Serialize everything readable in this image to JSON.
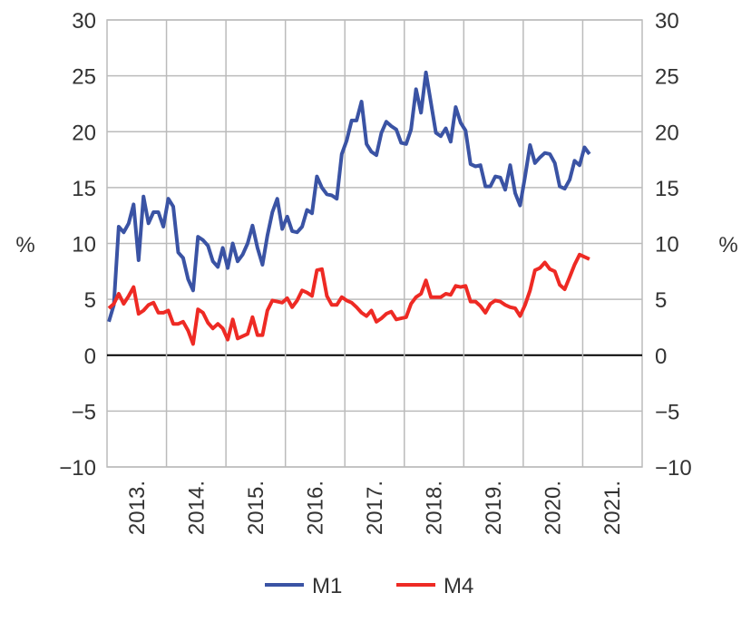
{
  "chart_data": {
    "type": "line",
    "title": "",
    "ylabel_left": "%",
    "ylabel_right": "%",
    "ylim": [
      -10,
      30
    ],
    "yticks": [
      30,
      25,
      20,
      15,
      10,
      5,
      0,
      -5,
      -10
    ],
    "ytick_labels": [
      "30",
      "25",
      "20",
      "15",
      "10",
      "5",
      "0",
      "−5",
      "−10"
    ],
    "xtick_labels": [
      "2013.",
      "2014.",
      "2015.",
      "2016.",
      "2017.",
      "2018.",
      "2019.",
      "2020.",
      "2021."
    ],
    "x_axis": "monthly, 2013-01 to 2021-02",
    "grid": true,
    "legend_position": "bottom",
    "series": [
      {
        "name": "M1",
        "color": "#3a53a4",
        "values": [
          3,
          4.5,
          11.5,
          11,
          11.8,
          13.5,
          8.5,
          14.2,
          11.8,
          12.8,
          12.8,
          11.5,
          14,
          13.3,
          9.2,
          8.7,
          6.8,
          5.8,
          10.6,
          10.3,
          9.8,
          8.4,
          7.9,
          9.6,
          7.8,
          10,
          8.4,
          9,
          10,
          11.6,
          9.6,
          8.1,
          10.7,
          12.8,
          14,
          11.3,
          12.4,
          11.1,
          11,
          11.5,
          13,
          12.7,
          16,
          15,
          14.4,
          14.3,
          14,
          18,
          19.2,
          21,
          21,
          22.7,
          18.9,
          18.2,
          17.9,
          19.9,
          20.9,
          20.5,
          20.2,
          19,
          18.9,
          20.2,
          23.8,
          21.7,
          25.3,
          22.6,
          19.9,
          19.6,
          20.3,
          19.1,
          22.2,
          20.8,
          20.1,
          17.1,
          16.9,
          17,
          15.1,
          15.1,
          16,
          15.9,
          14.8,
          17,
          14.5,
          13.4,
          16,
          18.8,
          17.2,
          17.7,
          18.1,
          18,
          17.2,
          15.1,
          14.9,
          15.7,
          17.4,
          17,
          18.6,
          18
        ]
      },
      {
        "name": "M4",
        "color": "#ee2a24",
        "values": [
          4.2,
          4.6,
          5.5,
          4.6,
          5.3,
          6.1,
          3.7,
          4,
          4.5,
          4.7,
          3.8,
          3.8,
          4,
          2.8,
          2.8,
          3,
          2.2,
          1,
          4.1,
          3.8,
          2.9,
          2.4,
          2.8,
          2.4,
          1.4,
          3.2,
          1.5,
          1.7,
          1.9,
          3.4,
          1.8,
          1.8,
          4,
          4.9,
          4.8,
          4.7,
          5.1,
          4.3,
          4.9,
          5.8,
          5.6,
          5.3,
          7.6,
          7.7,
          5.3,
          4.5,
          4.5,
          5.2,
          4.9,
          4.7,
          4.3,
          3.8,
          3.5,
          4,
          3,
          3.3,
          3.7,
          3.9,
          3.2,
          3.3,
          3.4,
          4.6,
          5.2,
          5.5,
          6.7,
          5.2,
          5.2,
          5.2,
          5.5,
          5.4,
          6.2,
          6.1,
          6.2,
          4.8,
          4.8,
          4.4,
          3.8,
          4.6,
          4.9,
          4.8,
          4.5,
          4.3,
          4.2,
          3.5,
          4.5,
          5.8,
          7.6,
          7.8,
          8.3,
          7.7,
          7.5,
          6.3,
          5.9,
          7,
          8.1,
          9,
          8.8,
          8.6
        ]
      }
    ],
    "zero_line_color": "#000000"
  }
}
